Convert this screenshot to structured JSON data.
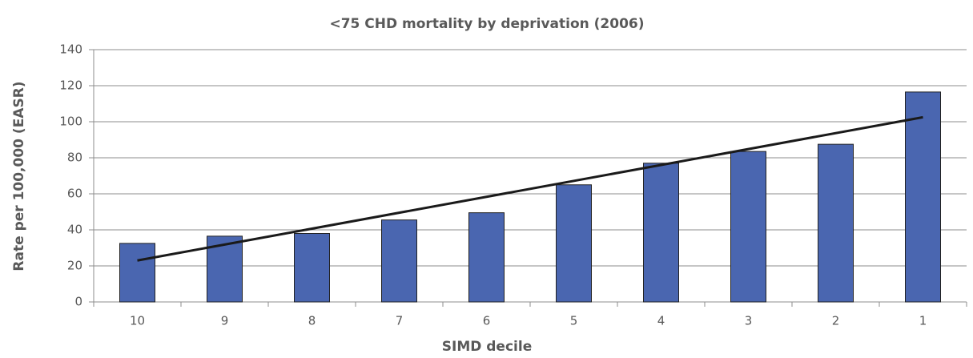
{
  "chart_data": {
    "type": "bar",
    "title": "<75 CHD mortality by deprivation (2006)",
    "x_label": "SIMD decile",
    "y_label": "Rate per 100,000 (EASR)",
    "categories": [
      "10",
      "9",
      "8",
      "7",
      "6",
      "5",
      "4",
      "3",
      "2",
      "1"
    ],
    "values": [
      32.5,
      36.5,
      38,
      45.5,
      49.5,
      65,
      77,
      83.5,
      87.5,
      116.5
    ],
    "color": "#4a66b0",
    "trendline": [
      23,
      102.5
    ],
    "trendline_color": "#1a1a1a",
    "ylim": [
      0,
      140
    ],
    "yticks": [
      0,
      20,
      40,
      60,
      80,
      100,
      120,
      140
    ],
    "grid": true
  }
}
